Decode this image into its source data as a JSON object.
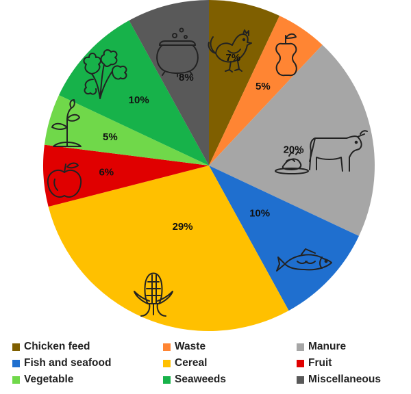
{
  "chart_data": {
    "type": "pie",
    "title": "",
    "slices": [
      {
        "label": "Chicken feed",
        "value": 7,
        "display": "7%",
        "color": "#7f5f00",
        "icon": "chicken-icon"
      },
      {
        "label": "Waste",
        "value": 5,
        "display": "5%",
        "color": "#ff8533",
        "icon": "apple-core-icon"
      },
      {
        "label": "Manure",
        "value": 20,
        "display": "20%",
        "color": "#a6a6a6",
        "icon": "cow-icon"
      },
      {
        "label": "Fish and seafood",
        "value": 10,
        "display": "10%",
        "color": "#1f6fcf",
        "icon": "fish-icon"
      },
      {
        "label": "Cereal",
        "value": 29,
        "display": "29%",
        "color": "#ffc000",
        "icon": "corn-icon"
      },
      {
        "label": "Fruit",
        "value": 6,
        "display": "6%",
        "color": "#e00000",
        "icon": "apple-icon"
      },
      {
        "label": "Vegetable",
        "value": 5,
        "display": "5%",
        "color": "#70d84a",
        "icon": "sprout-icon"
      },
      {
        "label": "Seaweeds",
        "value": 10,
        "display": "10%",
        "color": "#17b24a",
        "icon": "seaweed-icon"
      },
      {
        "label": "Miscellaneous",
        "value": 8,
        "display": "8%",
        "color": "#595959",
        "icon": "cauldron-icon"
      }
    ],
    "legend_position": "bottom",
    "legend_order": [
      "Chicken feed",
      "Waste",
      "Manure",
      "Fish and seafood",
      "Cereal",
      "Fruit",
      "Vegetable",
      "Seaweeds",
      "Miscellaneous"
    ]
  }
}
